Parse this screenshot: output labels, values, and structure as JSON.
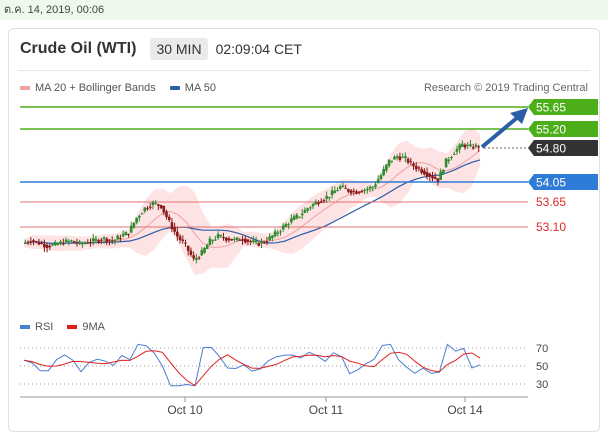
{
  "topbar": {
    "datetime": "ต.ค. 14, 2019, 00:06"
  },
  "header": {
    "title": "Crude Oil (WTI)",
    "timeframe": "30 MIN",
    "time": "02:09:04 CET"
  },
  "legend": {
    "items": [
      {
        "label": "MA 20 + Bollinger Bands",
        "color": "#f0a0a0"
      },
      {
        "label": "MA 50",
        "color": "#2a5ea8"
      }
    ],
    "credit": "Research © 2019 Trading Central"
  },
  "levels": [
    {
      "value": "55.65",
      "type": "target-resistance",
      "color": "#4caf1a"
    },
    {
      "value": "55.20",
      "type": "resistance",
      "color": "#4caf1a"
    },
    {
      "value": "54.80",
      "type": "last-price",
      "color": "#333333"
    },
    {
      "value": "54.05",
      "type": "pivot",
      "color": "#2f7bd8"
    },
    {
      "value": "53.65",
      "type": "support",
      "color": "#e05050"
    },
    {
      "value": "53.10",
      "type": "support",
      "color": "#e05050"
    }
  ],
  "xaxis": {
    "labels": [
      "Oct 10",
      "Oct 11",
      "Oct 14"
    ]
  },
  "rsi": {
    "legend": [
      {
        "label": "RSI",
        "color": "#4a7fd0"
      },
      {
        "label": "9MA",
        "color": "#e02020"
      }
    ],
    "ticks": [
      "70",
      "50",
      "30"
    ]
  },
  "chart_data": {
    "type": "line",
    "ylim": [
      52.2,
      55.9
    ],
    "support_resistance": [
      55.65,
      55.2,
      54.8,
      54.05,
      53.65,
      53.1
    ],
    "last_price": 54.8,
    "price_series_approx": [
      52.75,
      52.82,
      52.76,
      52.7,
      52.72,
      52.78,
      52.8,
      52.74,
      52.78,
      52.82,
      52.85,
      52.8,
      52.9,
      52.98,
      53.3,
      53.5,
      53.6,
      53.55,
      53.2,
      52.9,
      52.7,
      52.4,
      52.55,
      52.8,
      52.9,
      52.86,
      52.82,
      52.85,
      52.78,
      52.75,
      52.82,
      52.95,
      53.1,
      53.25,
      53.35,
      53.5,
      53.62,
      53.7,
      53.82,
      53.95,
      53.88,
      53.85,
      53.9,
      53.95,
      54.2,
      54.5,
      54.6,
      54.55,
      54.4,
      54.3,
      54.2,
      54.1,
      54.5,
      54.7,
      54.85,
      54.8,
      54.82
    ]
  }
}
